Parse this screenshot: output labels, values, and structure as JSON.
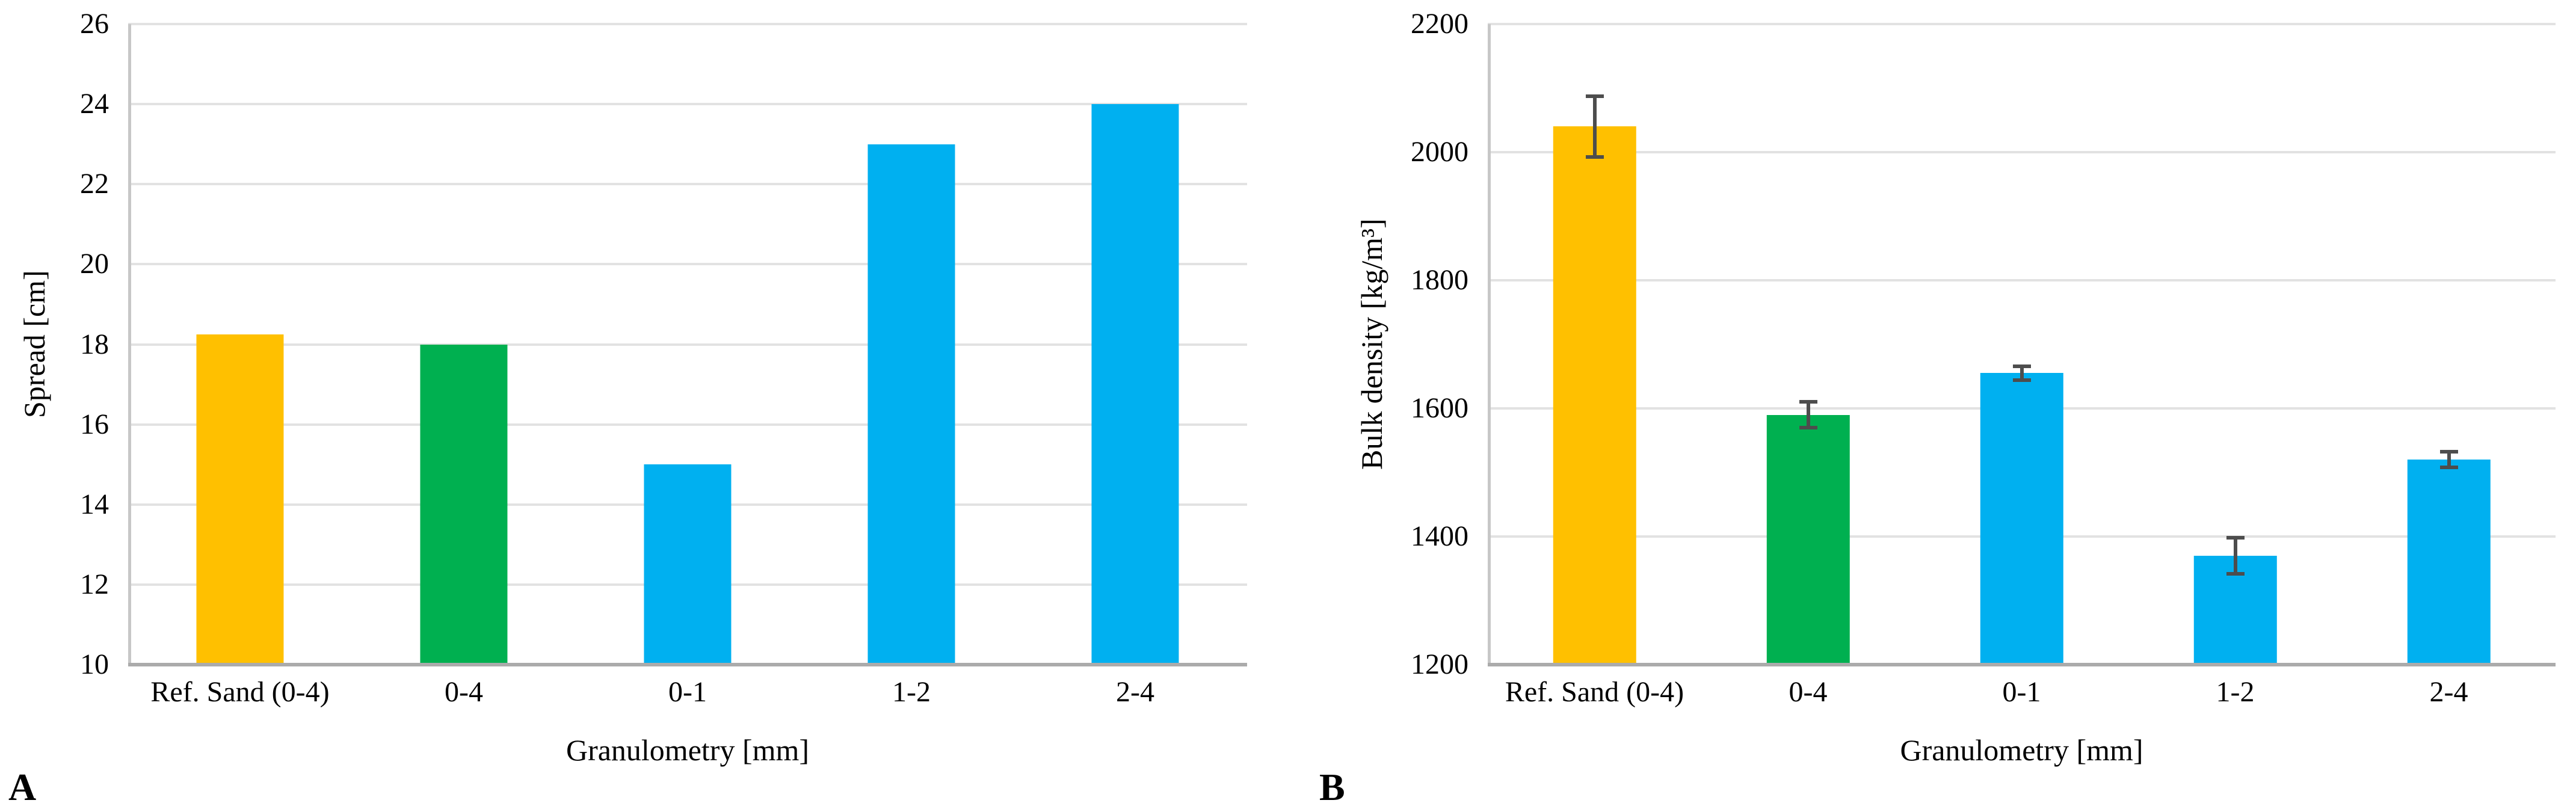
{
  "figure": {
    "description": "Two-panel bar chart figure comparing granulometry fractions",
    "colors": {
      "reference_bar": "#FFC000",
      "full_fraction_bar": "#00B050",
      "fraction_bar": "#00B0F0",
      "gridline": "#E2E2E2",
      "axis_line": "#ABABAB",
      "error_bar": "#4D4D4D"
    }
  },
  "chart_data": [
    {
      "type": "bar",
      "panel_label": "A",
      "title": "",
      "xlabel": "Granulometry [mm]",
      "ylabel": "Spread [cm]",
      "ymin": 10,
      "ymax": 26,
      "ystep": 2,
      "ylim": [
        10,
        26
      ],
      "grid": true,
      "legend": false,
      "categories": [
        "Ref. Sand (0-4)",
        "0-4",
        "0-1",
        "1-2",
        "2-4"
      ],
      "values": [
        18.25,
        18,
        15,
        23,
        24
      ],
      "errors": null,
      "bar_colors": [
        "#FFC000",
        "#00B050",
        "#00B0F0",
        "#00B0F0",
        "#00B0F0"
      ]
    },
    {
      "type": "bar",
      "panel_label": "B",
      "title": "",
      "xlabel": "Granulometry [mm]",
      "ylabel": "Bulk density [kg/m³]",
      "ymin": 1200,
      "ymax": 2200,
      "ystep": 200,
      "ylim": [
        1200,
        2200
      ],
      "grid": true,
      "legend": false,
      "categories": [
        "Ref. Sand (0-4)",
        "0-4",
        "0-1",
        "1-2",
        "2-4"
      ],
      "values": [
        2040,
        1590,
        1655,
        1370,
        1520
      ],
      "errors": [
        50,
        23,
        14,
        31,
        15
      ],
      "bar_colors": [
        "#FFC000",
        "#00B050",
        "#00B0F0",
        "#00B0F0",
        "#00B0F0"
      ]
    }
  ]
}
